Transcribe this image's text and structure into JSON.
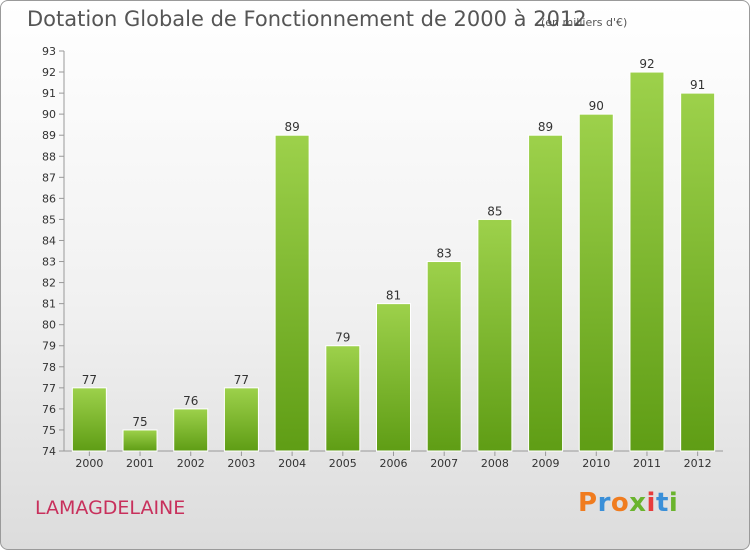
{
  "header": {
    "title": "Dotation Globale de Fonctionnement de 2000 à 2012",
    "unit": "(en milliers d'€)"
  },
  "footer": {
    "commune": "LAMAGDELAINE",
    "logo": "Proxiti",
    "logo_colors": [
      "#f07c1f",
      "#3a8fd8",
      "#f07c1f",
      "#6ab42d",
      "#e73c3c",
      "#3a8fd8",
      "#6ab42d"
    ]
  },
  "colors": {
    "bar_top": "#9dd14b",
    "bar_bottom": "#5f9d15",
    "axis": "#999999",
    "text": "#333333"
  },
  "chart_data": {
    "type": "bar",
    "title": "Dotation Globale de Fonctionnement de 2000 à 2012",
    "xlabel": "",
    "ylabel": "",
    "categories": [
      "2000",
      "2001",
      "2002",
      "2003",
      "2004",
      "2005",
      "2006",
      "2007",
      "2008",
      "2009",
      "2010",
      "2011",
      "2012"
    ],
    "values": [
      77,
      75,
      76,
      77,
      89,
      79,
      81,
      83,
      85,
      89,
      90,
      92,
      91
    ],
    "ylim": [
      74,
      93
    ],
    "yticks": [
      74,
      75,
      76,
      77,
      78,
      79,
      80,
      81,
      82,
      83,
      84,
      85,
      86,
      87,
      88,
      89,
      90,
      91,
      92,
      93
    ],
    "grid": false,
    "data_labels": true
  }
}
